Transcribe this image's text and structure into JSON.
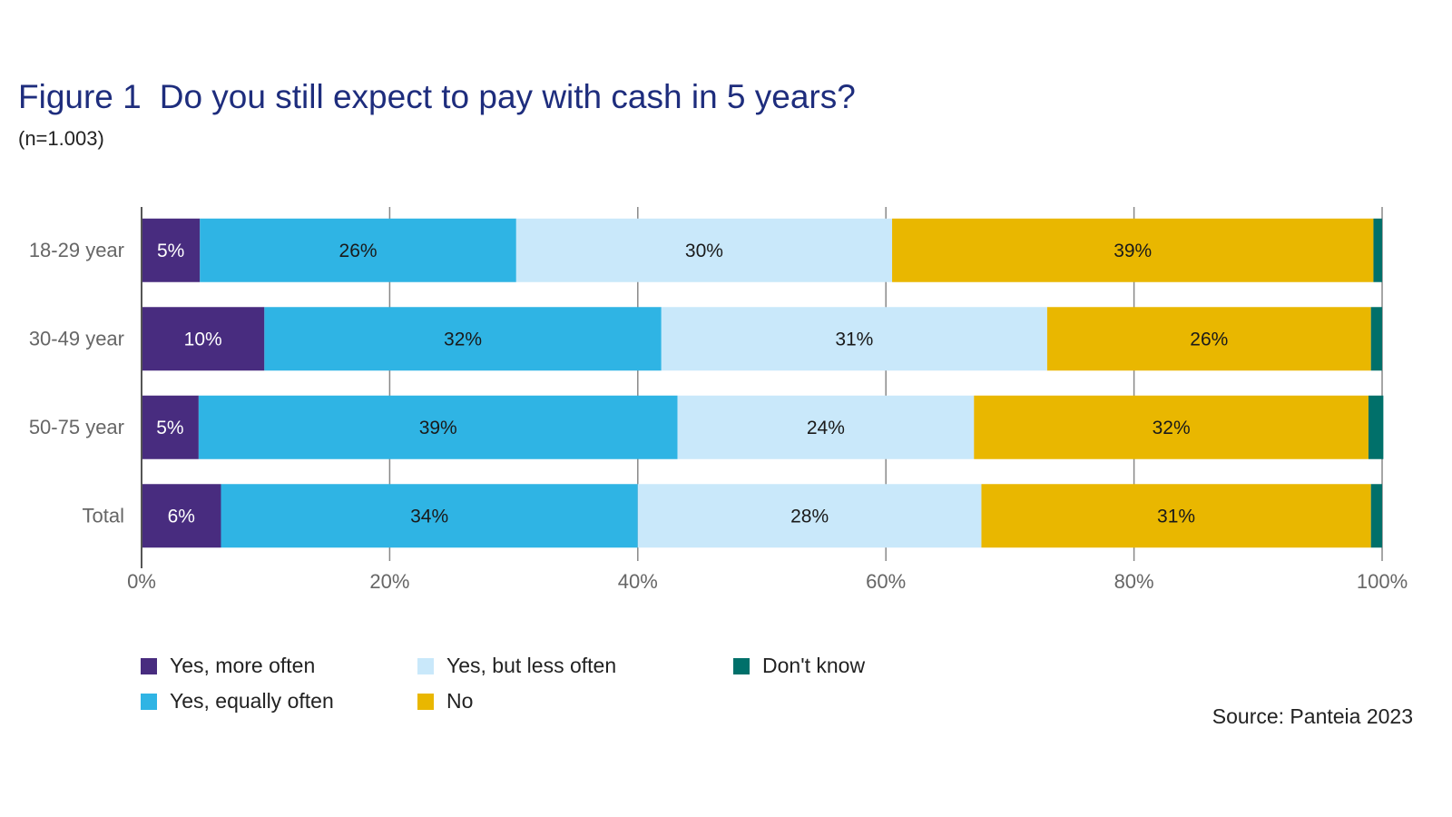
{
  "title_prefix": "Figure 1",
  "title": "Do you still expect to pay with cash in 5 years?",
  "subtitle": "(n=1.003)",
  "source": "Source: Panteia 2023",
  "chart_data": {
    "type": "bar",
    "orientation": "horizontal",
    "stacked": true,
    "categories": [
      "18-29 year",
      "30-49 year",
      "50-75 year",
      "Total"
    ],
    "series": [
      {
        "name": "Yes, more often",
        "color": "#482c7f",
        "label_color": "#ffffff",
        "values": [
          4.7,
          9.9,
          4.6,
          6.4
        ],
        "labels": [
          "5%",
          "10%",
          "5%",
          "6%"
        ]
      },
      {
        "name": "Yes, equally often",
        "color": "#2fb4e4",
        "label_color": "#1a1a1a",
        "values": [
          25.5,
          32.0,
          38.6,
          33.6
        ],
        "labels": [
          "26%",
          "32%",
          "39%",
          "34%"
        ]
      },
      {
        "name": "Yes, but less often",
        "color": "#c9e8fa",
        "label_color": "#1a1a1a",
        "values": [
          30.3,
          31.1,
          23.9,
          27.7
        ],
        "labels": [
          "30%",
          "31%",
          "24%",
          "28%"
        ]
      },
      {
        "name": "No",
        "color": "#e9b700",
        "label_color": "#1a1a1a",
        "values": [
          38.8,
          26.1,
          31.8,
          31.4
        ],
        "labels": [
          "39%",
          "26%",
          "32%",
          "31%"
        ]
      },
      {
        "name": "Don't know",
        "color": "#00706a",
        "label_color": "#ffffff",
        "values": [
          0.7,
          0.9,
          1.2,
          0.9
        ],
        "labels": [
          "",
          "",
          "",
          ""
        ]
      }
    ],
    "xlim": [
      0,
      100
    ],
    "xticks": [
      0,
      20,
      40,
      60,
      80,
      100
    ],
    "xtick_labels": [
      "0%",
      "20%",
      "40%",
      "60%",
      "80%",
      "100%"
    ],
    "grid": "vertical",
    "legend_position": "bottom"
  }
}
